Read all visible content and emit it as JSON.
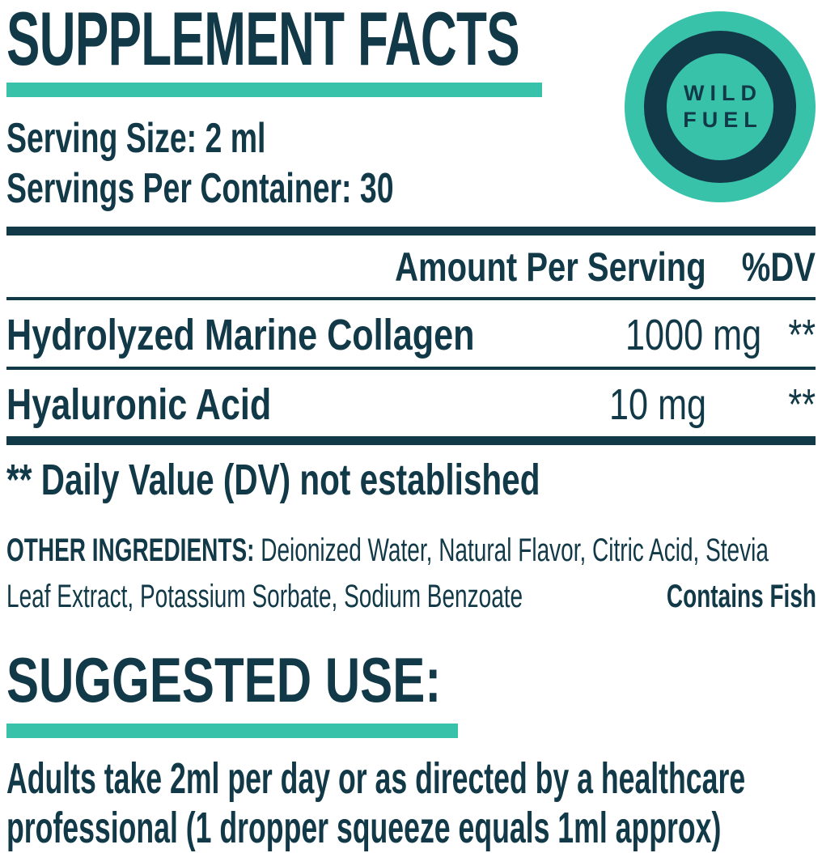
{
  "colors": {
    "navy": "#123948",
    "teal": "#38C2AA",
    "background": "#FFFFFF"
  },
  "header": {
    "title": "SUPPLEMENT FACTS"
  },
  "logo": {
    "line1": "WILD",
    "line2": "FUEL"
  },
  "serving": {
    "size": "Serving Size: 2 ml",
    "per_container": "Servings Per Container: 30"
  },
  "table": {
    "columns": {
      "amount": "Amount Per Serving",
      "dv": "%DV"
    },
    "rows": [
      {
        "name": "Hydrolyzed Marine Collagen",
        "amount": "1000 mg",
        "dv": "**"
      },
      {
        "name": "Hyaluronic Acid",
        "amount": "10 mg",
        "dv": "**"
      }
    ],
    "footnote": "** Daily Value (DV) not established"
  },
  "other_ingredients": {
    "label": "OTHER INGREDIENTS:",
    "line1": "Deionized Water, Natural Flavor, Citric Acid, Stevia",
    "line2": "Leaf Extract, Potassium Sorbate, Sodium Benzoate",
    "contains": "Contains Fish"
  },
  "suggested_use": {
    "title": "SUGGESTED USE:",
    "line1": "Adults take 2ml per day or as directed by a healthcare",
    "line2": "professional (1 dropper squeeze equals 1ml approx)"
  }
}
